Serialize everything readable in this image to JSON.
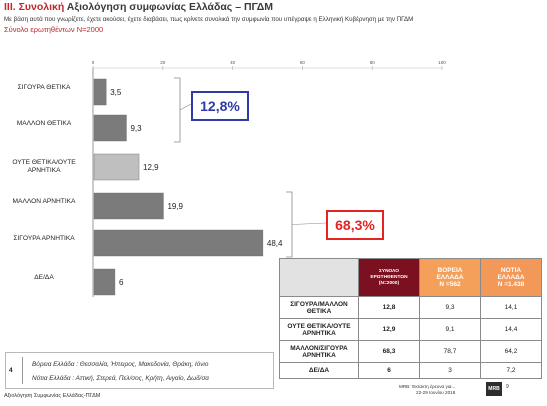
{
  "header": {
    "title_prefix": "ΙΙΙ. Συνολική",
    "title_rest": " Αξιολόγηση συμφωνίας Ελλάδας – ΠΓΔΜ",
    "subtitle": "Με βάση αυτά που γνωρίζετε, έχετε ακούσει, έχετε διαβάσει, πως κρίνετε συνολικά την συμφωνία που υπέγραψε η Ελληνική Κυβέρνηση με την ΠΓΔΜ",
    "base": "Σύνολο ερωτηθέντων Ν=2000"
  },
  "chart_data": {
    "type": "bar",
    "orientation": "horizontal",
    "categories": [
      "ΣΙΓΟΥΡΑ ΘΕΤΙΚΑ",
      "ΜΑΛΛΟΝ ΘΕΤΙΚΑ",
      "ΟΥΤΕ ΘΕΤΙΚΑ/ΟΥΤΕ ΑΡΝΗΤΙΚΑ",
      "ΜΑΛΛΟΝ ΑΡΝΗΤΙΚΑ",
      "ΣΙΓΟΥΡΑ ΑΡΝΗΤΙΚΑ",
      "ΔΕ/ΔΑ"
    ],
    "values": [
      3.5,
      9.3,
      12.9,
      19.9,
      48.4,
      6
    ],
    "value_labels": [
      "3,5",
      "9,3",
      "12,9",
      "19,9",
      "48,4",
      "6"
    ],
    "xlim": [
      0,
      100
    ],
    "ticks": [
      0,
      20,
      40,
      60,
      80,
      100
    ],
    "colors": {
      "positive": "#7b7b7b",
      "neutral": "#bfbfbf",
      "negative": "#7b7b7b",
      "dkna": "#7b7b7b",
      "positive_callout": "#2f3aa8",
      "negative_callout": "#e52421"
    },
    "callouts": {
      "positive": "12,8%",
      "negative": "68,3%"
    }
  },
  "table": {
    "headers": [
      "ΣΥΝΟΛΟ ΕΡΩΤΗΘΕΝΤΩΝ (Ν=2000)",
      "ΒΟΡΕΙΑ ΕΛΛΑΔΑ Ν =562",
      "ΝΟΤΙΑ ΕΛΛΑΔΑ Ν =1.438"
    ],
    "header_lines": [
      [
        "ΣΥΝΟΛΟ",
        "ΕΡΩΤΗΘΕΝΤΩΝ",
        "(Ν=2000)"
      ],
      [
        "ΒΟΡΕΙΑ",
        "ΕΛΛΑΔΑ",
        "Ν =562"
      ],
      [
        "ΝΟΤΙΑ",
        "ΕΛΛΑΔΑ",
        "Ν =1.438"
      ]
    ],
    "rows": [
      {
        "label_lines": [
          "ΣΙΓΟΥΡΑ/ΜΑΛΛΟΝ",
          "ΘΕΤΙΚΑ"
        ],
        "values": [
          "12,8",
          "9,3",
          "14,1"
        ]
      },
      {
        "label_lines": [
          "ΟΥΤΕ ΘΕΤΙΚΑ/ΟΥΤΕ",
          "ΑΡΝΗΤΙΚΑ"
        ],
        "values": [
          "12,9",
          "9,1",
          "14,4"
        ]
      },
      {
        "label_lines": [
          "ΜΑΛΛΟΝ/ΣΙΓΟΥΡΑ",
          "ΑΡΝΗΤΙΚΑ"
        ],
        "values": [
          "68,3",
          "78,7",
          "64,2"
        ]
      },
      {
        "label_lines": [
          "ΔΕ/ΔΑ"
        ],
        "values": [
          "6",
          "3",
          "7,2"
        ]
      }
    ]
  },
  "legend": {
    "number": "4",
    "north": "Βόρεια Ελλάδα : Θεσσαλία, Ήπειρος, Μακεδονία, Θράκη, Ιόνιο",
    "south": "Νότια Ελλάδα : Αττική, Στερεά, Πελ/σος, Κρήτη, Αιγαίο, Δωδ/σα"
  },
  "footer": {
    "left": "Αξιολόγηση Συμφωνίας Ελλάδας-ΠΓΔΜ",
    "right_line1": "MRB: Έκτακτη έρευνα για...",
    "right_line2": "22-29 Ιουνίου 2018",
    "logo": "MRB",
    "page": "9"
  }
}
